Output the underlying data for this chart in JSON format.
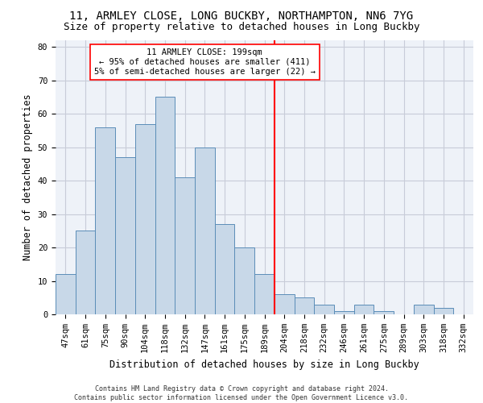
{
  "title_line1": "11, ARMLEY CLOSE, LONG BUCKBY, NORTHAMPTON, NN6 7YG",
  "title_line2": "Size of property relative to detached houses in Long Buckby",
  "xlabel": "Distribution of detached houses by size in Long Buckby",
  "ylabel": "Number of detached properties",
  "footnote": "Contains HM Land Registry data © Crown copyright and database right 2024.\nContains public sector information licensed under the Open Government Licence v3.0.",
  "bar_labels": [
    "47sqm",
    "61sqm",
    "75sqm",
    "90sqm",
    "104sqm",
    "118sqm",
    "132sqm",
    "147sqm",
    "161sqm",
    "175sqm",
    "189sqm",
    "204sqm",
    "218sqm",
    "232sqm",
    "246sqm",
    "261sqm",
    "275sqm",
    "289sqm",
    "303sqm",
    "318sqm",
    "332sqm"
  ],
  "bar_values": [
    12,
    25,
    56,
    47,
    57,
    65,
    41,
    50,
    27,
    20,
    12,
    6,
    5,
    3,
    1,
    3,
    1,
    0,
    3,
    2,
    0
  ],
  "bar_color": "#c8d8e8",
  "bar_edge_color": "#5b8db8",
  "vline_x_index": 10.5,
  "vline_color": "red",
  "annotation_line1": "11 ARMLEY CLOSE: 199sqm",
  "annotation_line2": "← 95% of detached houses are smaller (411)",
  "annotation_line3": "5% of semi-detached houses are larger (22) →",
  "ylim": [
    0,
    82
  ],
  "yticks": [
    0,
    10,
    20,
    30,
    40,
    50,
    60,
    70,
    80
  ],
  "bg_color": "#eef2f8",
  "grid_color": "#c8ccd8",
  "title_fontsize": 10,
  "subtitle_fontsize": 9,
  "axis_label_fontsize": 8.5,
  "tick_fontsize": 7.5,
  "annot_fontsize": 7.5
}
